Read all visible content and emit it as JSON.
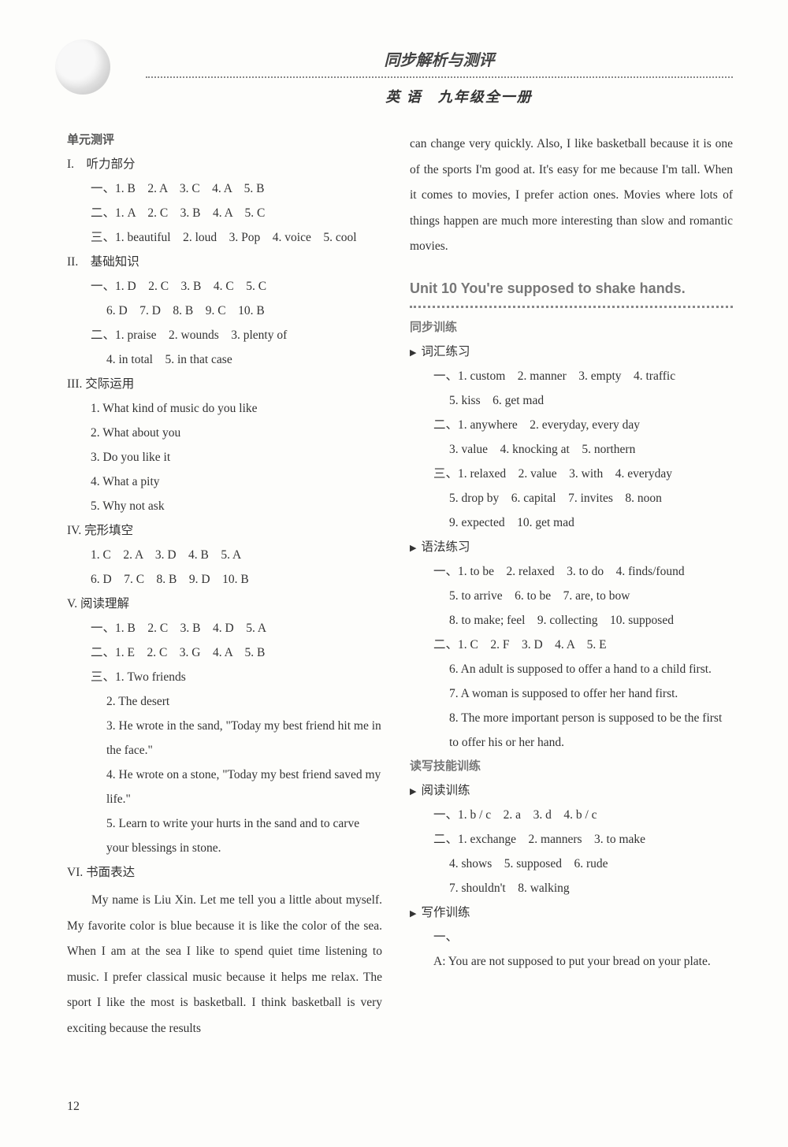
{
  "header": {
    "title_main": "同步解析与测评",
    "subtitle": "英 语　九年级全一册"
  },
  "left": {
    "unit_eval": "单元测评",
    "s1_label": "I.　听力部分",
    "s1_a": "一、1. B　2. A　3. C　4. A　5. B",
    "s1_b": "二、1. A　2. C　3. B　4. A　5. C",
    "s1_c": "三、1. beautiful　2. loud　3. Pop　4. voice　5. cool",
    "s2_label": "II.　基础知识",
    "s2_a": "一、1. D　2. C　3. B　4. C　5. C",
    "s2_a2": "6. D　7. D　8. B　9. C　10. B",
    "s2_b": "二、1. praise　2. wounds　3. plenty of",
    "s2_b2": "4. in total　5. in that case",
    "s3_label": "III. 交际运用",
    "s3_1": "1. What kind of music do you like",
    "s3_2": "2. What about you",
    "s3_3": "3. Do you like it",
    "s3_4": "4. What a pity",
    "s3_5": "5. Why not ask",
    "s4_label": "IV. 完形填空",
    "s4_a": "1. C　2. A　3. D　4. B　5. A",
    "s4_b": "6. D　7. C　8. B　9. D　10. B",
    "s5_label": "V. 阅读理解",
    "s5_a": "一、1. B　2. C　3. B　4. D　5. A",
    "s5_b": "二、1. E　2. C　3. G　4. A　5. B",
    "s5_c": "三、1. Two friends",
    "s5_c2": "2. The desert",
    "s5_c3": "3. He wrote in the sand, \"Today my best friend hit me in the face.\"",
    "s5_c4": "4. He wrote on a stone, \"Today my best friend saved my life.\"",
    "s5_c5": "5. Learn to write your hurts in the sand and to carve your blessings in stone.",
    "s6_label": "VI. 书面表达",
    "essay": "My name is Liu Xin. Let me tell you a little about myself. My favorite color is blue because it is like the color of the sea. When I am at the sea I like to spend quiet time listening to music. I prefer classical music because it helps me relax. The sport I like the most is basketball. I think basketball is very exciting because the results"
  },
  "right": {
    "essay_cont": "can change very quickly. Also, I like basketball because it is one of the sports I'm good at. It's easy for me because I'm tall. When it comes to movies, I prefer action ones. Movies where lots of things happen are much more interesting than slow and romantic movies.",
    "unit_title": "Unit 10 You're supposed to shake hands.",
    "sync_label": "同步训练",
    "vocab_label": "词汇练习",
    "v1": "一、1. custom　2. manner　3. empty　4. traffic",
    "v1b": "5. kiss　6. get mad",
    "v2": "二、1. anywhere　2. everyday, every day",
    "v2b": "3. value　4. knocking at　5. northern",
    "v3": "三、1. relaxed　2. value　3. with　4. everyday",
    "v3b": "5. drop by　6. capital　7. invites　8. noon",
    "v3c": "9. expected　10. get mad",
    "grammar_label": "语法练习",
    "g1": "一、1. to be　2. relaxed　3. to do　4. finds/found",
    "g1b": "5. to arrive　6. to be　7. are, to bow",
    "g1c": "8. to make; feel　9. collecting　10. supposed",
    "g2": "二、1. C　2. F　3. D　4. A　5. E",
    "g2_6": "6. An adult is supposed to offer a hand to a child first.",
    "g2_7": "7. A woman is supposed to offer her hand first.",
    "g2_8": "8. The more important person is supposed to be the first to offer his or her hand.",
    "rw_label": "读写技能训练",
    "read_label": "阅读训练",
    "r1": "一、1. b / c　2. a　3. d　4. b / c",
    "r2": "二、1. exchange　2. manners　3. to make",
    "r2b": "4. shows　5. supposed　6. rude",
    "r2c": "7. shouldn't　8. walking",
    "write_label": "写作训练",
    "w1": "一、",
    "wA": "A: You are not supposed to put your bread on your plate."
  },
  "page_number": "12"
}
